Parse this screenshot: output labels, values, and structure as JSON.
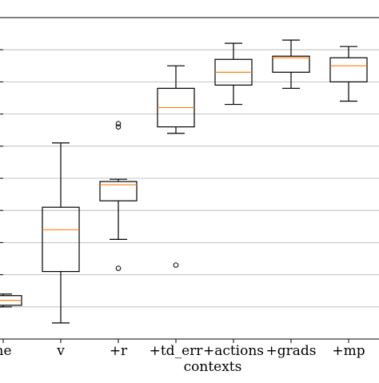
{
  "chart_data": {
    "type": "box",
    "title": "",
    "xlabel": "contexts",
    "ylabel": "",
    "categories": [
      "ne",
      "v",
      "+r",
      "+td_err",
      "+actions",
      "+grads",
      "+mp"
    ],
    "ylim": [
      0,
      1
    ],
    "grid": {
      "y": true,
      "x": false
    },
    "colors": {
      "median": "#ff7f0e",
      "box": "#000000",
      "grid": "#b0b0b0"
    },
    "boxes": [
      {
        "whisker_low": 0.1,
        "q1": 0.105,
        "median": 0.12,
        "q3": 0.135,
        "whisker_high": 0.14,
        "outliers": []
      },
      {
        "whisker_low": 0.05,
        "q1": 0.21,
        "median": 0.34,
        "q3": 0.41,
        "whisker_high": 0.61,
        "outliers": []
      },
      {
        "whisker_low": 0.31,
        "q1": 0.43,
        "median": 0.48,
        "q3": 0.49,
        "whisker_high": 0.497,
        "outliers": [
          0.22,
          0.66,
          0.67
        ]
      },
      {
        "whisker_low": 0.64,
        "q1": 0.66,
        "median": 0.72,
        "q3": 0.78,
        "whisker_high": 0.85,
        "outliers": [
          0.23
        ]
      },
      {
        "whisker_low": 0.73,
        "q1": 0.79,
        "median": 0.83,
        "q3": 0.87,
        "whisker_high": 0.92,
        "outliers": []
      },
      {
        "whisker_low": 0.78,
        "q1": 0.83,
        "median": 0.875,
        "q3": 0.88,
        "whisker_high": 0.93,
        "outliers": []
      },
      {
        "whisker_low": 0.74,
        "q1": 0.8,
        "median": 0.85,
        "q3": 0.875,
        "whisker_high": 0.91,
        "outliers": []
      }
    ]
  }
}
